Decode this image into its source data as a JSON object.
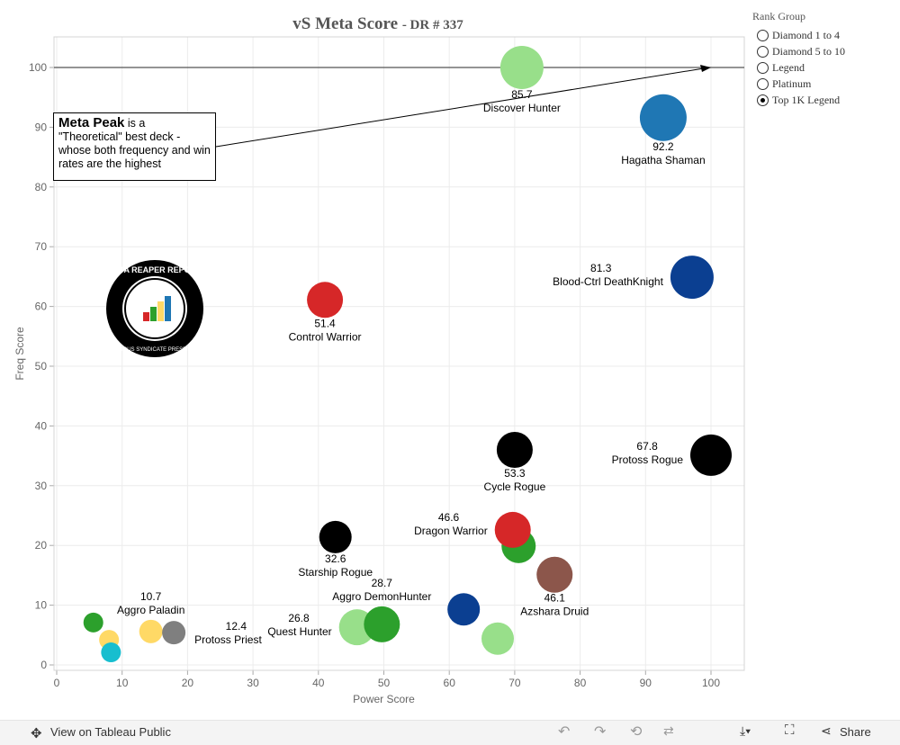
{
  "chart_data": {
    "type": "scatter",
    "title": "vS  Meta  Score",
    "subtitle": "-  DR  #  337",
    "xlabel": "Power Score",
    "ylabel": "Freq Score",
    "xlim": [
      0,
      105
    ],
    "ylim": [
      0,
      105
    ],
    "xticks": [
      0,
      10,
      20,
      30,
      40,
      50,
      60,
      70,
      80,
      90,
      100
    ],
    "yticks": [
      0,
      10,
      20,
      30,
      40,
      50,
      60,
      70,
      80,
      90,
      100
    ],
    "grid": true,
    "reference_line": {
      "y": 100
    },
    "points": [
      {
        "x": 71.1,
        "y": 100,
        "size": 24,
        "color": "#98df8a",
        "name": "Discover Hunter",
        "value": "85.7",
        "label_pos": "below"
      },
      {
        "x": 92.7,
        "y": 91.6,
        "size": 26,
        "color": "#1f77b4",
        "name": "Hagatha Shaman",
        "value": "92.2",
        "label_pos": "below"
      },
      {
        "x": 97.1,
        "y": 64.9,
        "size": 24,
        "color": "#0b3f91",
        "name": "Blood-Ctrl DeathKnight",
        "value": "81.3",
        "label_pos": "left"
      },
      {
        "x": 41.0,
        "y": 61.1,
        "size": 20,
        "color": "#d62728",
        "name": "Control Warrior",
        "value": "51.4",
        "label_pos": "below"
      },
      {
        "x": 70.0,
        "y": 36.0,
        "size": 20,
        "color": "#000000",
        "name": "Cycle Rogue",
        "value": "53.3",
        "label_pos": "below"
      },
      {
        "x": 100,
        "y": 35.1,
        "size": 23,
        "color": "#000000",
        "name": "Protoss Rogue",
        "value": "67.8",
        "label_pos": "left"
      },
      {
        "x": 70.6,
        "y": 19.9,
        "size": 19,
        "color": "#2ca02c",
        "name": "",
        "value": "",
        "label_pos": ""
      },
      {
        "x": 69.7,
        "y": 22.6,
        "size": 20,
        "color": "#d62728",
        "name": "Dragon Warrior",
        "value": "46.6",
        "label_pos": "left"
      },
      {
        "x": 76.1,
        "y": 15.1,
        "size": 20,
        "color": "#8c564b",
        "name": "Azshara Druid",
        "value": "46.1",
        "label_pos": "below"
      },
      {
        "x": 42.6,
        "y": 21.4,
        "size": 18,
        "color": "#000000",
        "name": "Starship Rogue",
        "value": "32.6",
        "label_pos": "below"
      },
      {
        "x": 62.2,
        "y": 9.3,
        "size": 18,
        "color": "#0b3f91",
        "name": "",
        "value": "",
        "label_pos": ""
      },
      {
        "x": 67.4,
        "y": 4.4,
        "size": 18,
        "color": "#98df8a",
        "name": "",
        "value": "",
        "label_pos": ""
      },
      {
        "x": 45.9,
        "y": 6.3,
        "size": 20,
        "color": "#98df8a",
        "name": "Quest Hunter",
        "value": "26.8",
        "label_pos": "left"
      },
      {
        "x": 49.7,
        "y": 6.8,
        "size": 20,
        "color": "#2ca02c",
        "name": "Aggro DemonHunter",
        "value": "28.7",
        "label_pos": "above"
      },
      {
        "x": 14.4,
        "y": 5.6,
        "size": 13,
        "color": "#ffd966",
        "name": "Aggro Paladin",
        "value": "10.7",
        "label_pos": "above"
      },
      {
        "x": 17.9,
        "y": 5.4,
        "size": 13,
        "color": "#7f7f7f",
        "name": "Protoss Priest",
        "value": "12.4",
        "label_pos": "right"
      },
      {
        "x": 5.6,
        "y": 7.1,
        "size": 11,
        "color": "#2ca02c",
        "name": "",
        "value": "",
        "label_pos": ""
      },
      {
        "x": 8.0,
        "y": 4.2,
        "size": 11,
        "color": "#ffd966",
        "name": "",
        "value": "",
        "label_pos": ""
      },
      {
        "x": 8.3,
        "y": 2.1,
        "size": 11,
        "color": "#17becf",
        "name": "",
        "value": "",
        "label_pos": ""
      }
    ],
    "annotation": {
      "bold": "Meta Peak",
      "text": " is a \"Theoretical\" best deck - whose both frequency and win rates are the highest"
    }
  },
  "legend": {
    "title": "Rank Group",
    "items": [
      {
        "label": "Diamond 1 to 4",
        "selected": false
      },
      {
        "label": "Diamond 5 to 10",
        "selected": false
      },
      {
        "label": "Legend",
        "selected": false
      },
      {
        "label": "Platinum",
        "selected": false
      },
      {
        "label": "Top 1K Legend",
        "selected": true
      }
    ]
  },
  "logo": {
    "text": "DATA REAPER REPORT",
    "sub": "VICIOUS SYNDICATE PRESENTS"
  },
  "toolbar": {
    "view": "View on Tableau Public",
    "share": "Share"
  }
}
